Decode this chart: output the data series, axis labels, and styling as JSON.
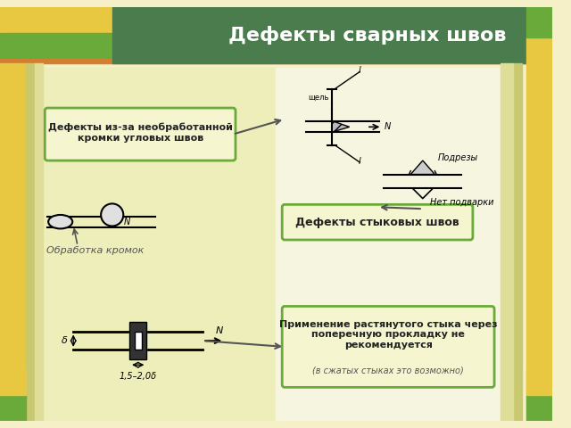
{
  "title": "Дефекты сварных швов",
  "title_bar_color": "#4a7c4e",
  "title_text_color": "#ffffff",
  "background_color": "#f5f0c8",
  "accent_yellow": "#e8c840",
  "accent_green": "#6aaa3a",
  "accent_orange": "#d08030",
  "box1_text": "Дефекты из-за необработанной\nкромки угловых швов",
  "box2_text": "Обработка кромок",
  "box3_text": "Дефекты стыковых швов",
  "box4_text": "Применение растянутого стыка через\nпоперечную прокладку не\nрекомендуется",
  "box4_subtext": "(в сжатых стыках это возможно)",
  "box_bg_color": "#f5f5d0",
  "box_border_color": "#6aaa3a",
  "figsize": [
    6.4,
    4.8
  ],
  "dpi": 100
}
